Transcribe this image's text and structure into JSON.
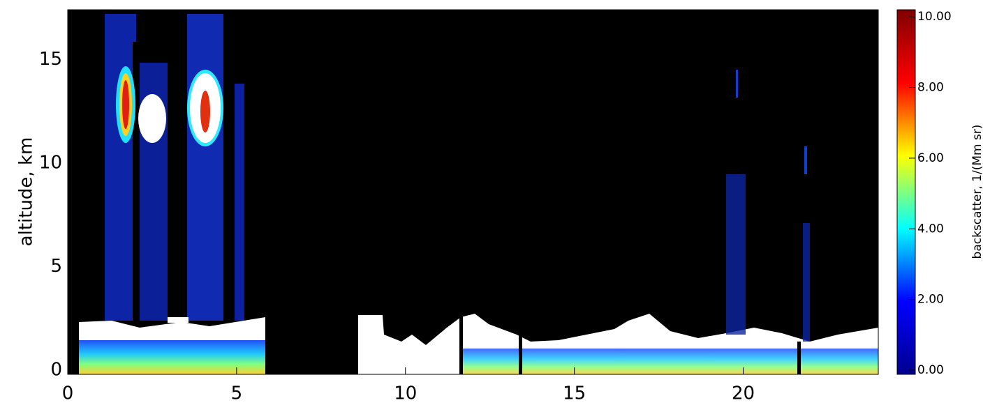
{
  "chart_data": {
    "type": "heatmap",
    "y_label": "altitude, km",
    "xlim": [
      0,
      24
    ],
    "xticks": [
      0,
      5,
      10,
      15,
      20
    ],
    "ylim": [
      -0.2,
      17.4
    ],
    "yticks": [
      0,
      5,
      10,
      15
    ],
    "colorbar": {
      "label": "backscatter, 1/(Mm sr)",
      "lim": [
        0,
        10.2
      ],
      "ticks": [
        {
          "value": 0,
          "label": "0.00"
        },
        {
          "value": 2,
          "label": "2.00"
        },
        {
          "value": 4,
          "label": "4.00"
        },
        {
          "value": 6,
          "label": "6.00"
        },
        {
          "value": 8,
          "label": "8.00"
        },
        {
          "value": 10,
          "label": "10.00"
        }
      ],
      "colors": [
        "#00008f",
        "#0000ff",
        "#00ffff",
        "#ffff00",
        "#ff0000",
        "#800000"
      ]
    }
  }
}
